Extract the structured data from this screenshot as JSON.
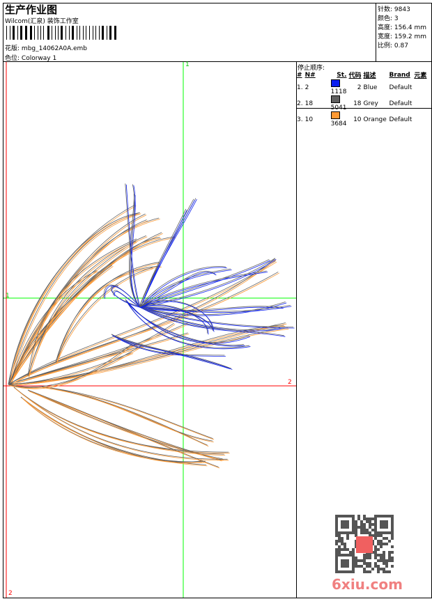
{
  "header": {
    "title": "生产作业图",
    "company": "Wilcom(汇泉) 装饰工作室",
    "design_label": "花版:",
    "design_value": "mbg_14062A0A.emb",
    "colorway_label": "色位:",
    "colorway_value": "Colorway 1"
  },
  "info": {
    "stitches": "针数: 9843",
    "colors": "颜色: 3",
    "height": "高度: 156.4 mm",
    "width": "宽度: 159.2 mm",
    "scale": "比例: 0.87"
  },
  "stop_sequence": {
    "title": "停止顺序:",
    "headers": [
      "#",
      "N#",
      "St.",
      "代码",
      "描述",
      "Brand",
      "元素"
    ],
    "rows": [
      {
        "idx": "1.",
        "n": "2",
        "color": "#0a1ef0",
        "st": "1118",
        "code": "2",
        "desc": "Blue",
        "brand": "Default"
      },
      {
        "idx": "2.",
        "n": "18",
        "color": "#606060",
        "st": "5041",
        "code": "18",
        "desc": "Grey",
        "brand": "Default"
      },
      {
        "idx": "3.",
        "n": "10",
        "color": "#ff9933",
        "st": "3684",
        "code": "10",
        "desc": "Orange",
        "brand": "Default"
      }
    ]
  },
  "axes": {
    "top": "1",
    "left": "1",
    "right": "2",
    "bottom": "2"
  },
  "watermark": "6xiu.com",
  "colors": {
    "axis_green": "#00ff00",
    "axis_red": "#ff0000",
    "thread_blue": "#0a1ef0",
    "thread_grey": "#606060",
    "thread_orange": "#ff9933"
  }
}
